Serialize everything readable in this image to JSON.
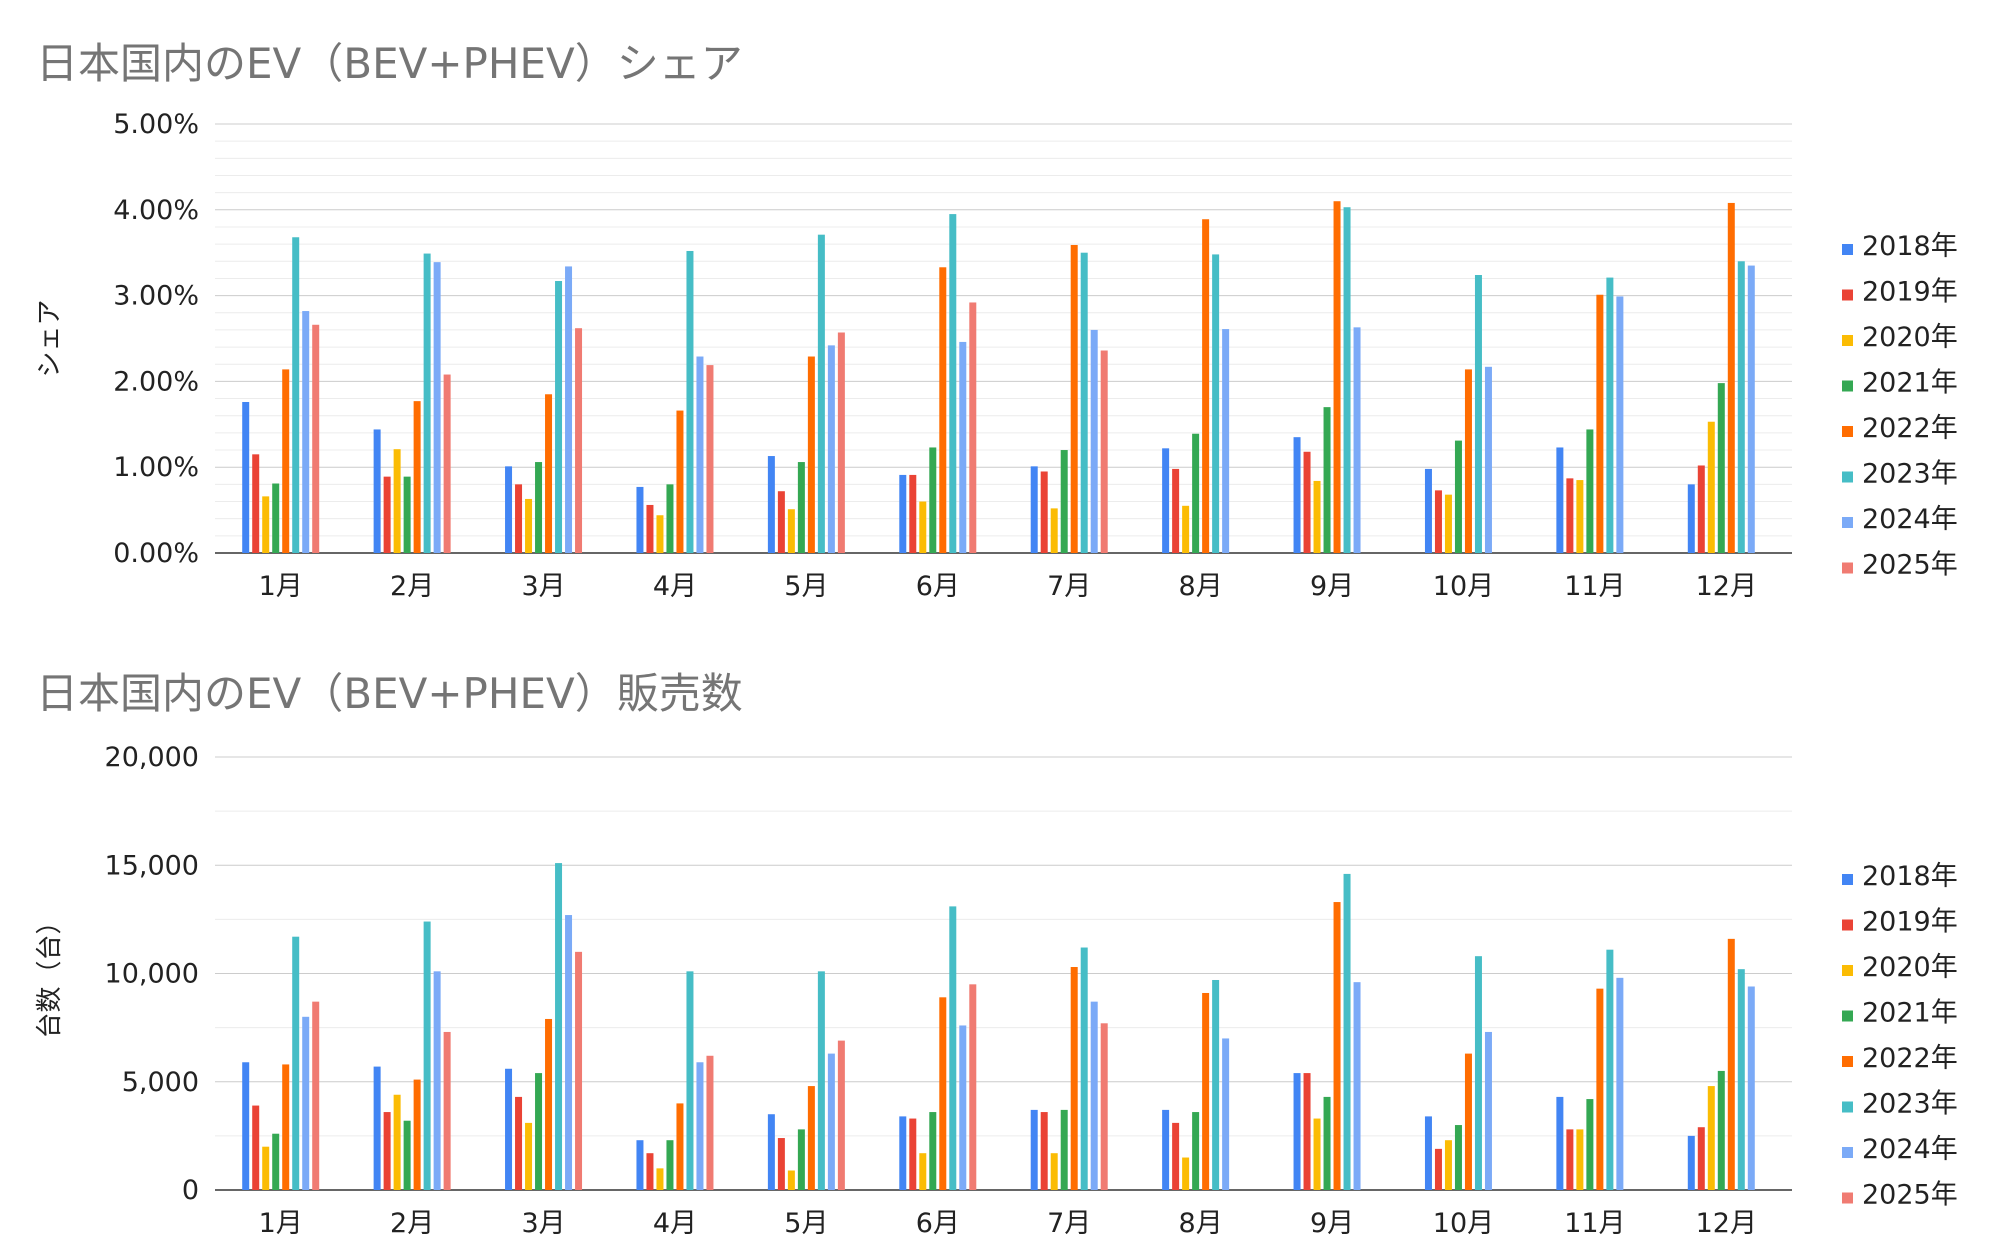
{
  "charts": [
    {
      "id": "share",
      "chart_data": {
        "type": "bar",
        "title": "日本国内のEV（BEV+PHEV）シェア",
        "ylabel": "シェア",
        "xlabel": "",
        "ylim": [
          0,
          5
        ],
        "y_unit": "percent",
        "y_ticks": [
          "0.00%",
          "1.00%",
          "2.00%",
          "3.00%",
          "4.00%",
          "5.00%"
        ],
        "grid": true,
        "legend": "right",
        "categories": [
          "1月",
          "2月",
          "3月",
          "4月",
          "5月",
          "6月",
          "7月",
          "8月",
          "9月",
          "10月",
          "11月",
          "12月"
        ],
        "series": [
          {
            "name": "2018年",
            "color": "#4285f4",
            "values": [
              1.76,
              1.44,
              1.01,
              0.77,
              1.13,
              0.91,
              1.01,
              1.22,
              1.35,
              0.98,
              1.23,
              0.8
            ]
          },
          {
            "name": "2019年",
            "color": "#ea4335",
            "values": [
              1.15,
              0.89,
              0.8,
              0.56,
              0.72,
              0.91,
              0.95,
              0.98,
              1.18,
              0.73,
              0.87,
              1.02
            ]
          },
          {
            "name": "2020年",
            "color": "#fbbc04",
            "values": [
              0.66,
              1.21,
              0.63,
              0.44,
              0.51,
              0.6,
              0.52,
              0.55,
              0.84,
              0.68,
              0.85,
              1.53
            ]
          },
          {
            "name": "2021年",
            "color": "#34a853",
            "values": [
              0.81,
              0.89,
              1.06,
              0.8,
              1.06,
              1.23,
              1.2,
              1.39,
              1.7,
              1.31,
              1.44,
              1.98
            ]
          },
          {
            "name": "2022年",
            "color": "#ff6d01",
            "values": [
              2.14,
              1.77,
              1.85,
              1.66,
              2.29,
              3.33,
              3.59,
              3.89,
              4.1,
              2.14,
              3.01,
              4.08
            ]
          },
          {
            "name": "2023年",
            "color": "#46bdc6",
            "values": [
              3.68,
              3.49,
              3.17,
              3.52,
              3.71,
              3.95,
              3.5,
              3.48,
              4.03,
              3.24,
              3.21,
              3.4
            ]
          },
          {
            "name": "2024年",
            "color": "#7baaf7",
            "values": [
              2.82,
              3.39,
              3.34,
              2.29,
              2.42,
              2.46,
              2.6,
              2.61,
              2.63,
              2.17,
              2.99,
              3.35
            ]
          },
          {
            "name": "2025年",
            "color": "#f07b72",
            "values": [
              2.66,
              2.08,
              2.62,
              2.19,
              2.57,
              2.92,
              2.36,
              null,
              null,
              null,
              null,
              null
            ]
          }
        ]
      }
    },
    {
      "id": "sales",
      "chart_data": {
        "type": "bar",
        "title": "日本国内のEV（BEV+PHEV）販売数",
        "ylabel": "台数（台）",
        "xlabel": "",
        "ylim": [
          0,
          20000
        ],
        "y_ticks": [
          "0",
          "5,000",
          "10,000",
          "15,000",
          "20,000"
        ],
        "grid": true,
        "legend": "right",
        "categories": [
          "1月",
          "2月",
          "3月",
          "4月",
          "5月",
          "6月",
          "7月",
          "8月",
          "9月",
          "10月",
          "11月",
          "12月"
        ],
        "series": [
          {
            "name": "2018年",
            "color": "#4285f4",
            "values": [
              5900,
              5700,
              5600,
              2300,
              3500,
              3400,
              3700,
              3700,
              5400,
              3400,
              4300,
              2500
            ]
          },
          {
            "name": "2019年",
            "color": "#ea4335",
            "values": [
              3900,
              3600,
              4300,
              1700,
              2400,
              3300,
              3600,
              3100,
              5400,
              1900,
              2800,
              2900
            ]
          },
          {
            "name": "2020年",
            "color": "#fbbc04",
            "values": [
              2000,
              4400,
              3100,
              1000,
              900,
              1700,
              1700,
              1500,
              3300,
              2300,
              2800,
              4800
            ]
          },
          {
            "name": "2021年",
            "color": "#34a853",
            "values": [
              2600,
              3200,
              5400,
              2300,
              2800,
              3600,
              3700,
              3600,
              4300,
              3000,
              4200,
              5500
            ]
          },
          {
            "name": "2022年",
            "color": "#ff6d01",
            "values": [
              5800,
              5100,
              7900,
              4000,
              4800,
              8900,
              10300,
              9100,
              13300,
              6300,
              9300,
              11600
            ]
          },
          {
            "name": "2023年",
            "color": "#46bdc6",
            "values": [
              11700,
              12400,
              15100,
              10100,
              10100,
              13100,
              11200,
              9700,
              14600,
              10800,
              11100,
              10200
            ]
          },
          {
            "name": "2024年",
            "color": "#7baaf7",
            "values": [
              8000,
              10100,
              12700,
              5900,
              6300,
              7600,
              8700,
              7000,
              9600,
              7300,
              9800,
              9400
            ]
          },
          {
            "name": "2025年",
            "color": "#f07b72",
            "values": [
              8700,
              7300,
              11000,
              6200,
              6900,
              9500,
              7700,
              null,
              null,
              null,
              null,
              null
            ]
          }
        ]
      }
    }
  ]
}
